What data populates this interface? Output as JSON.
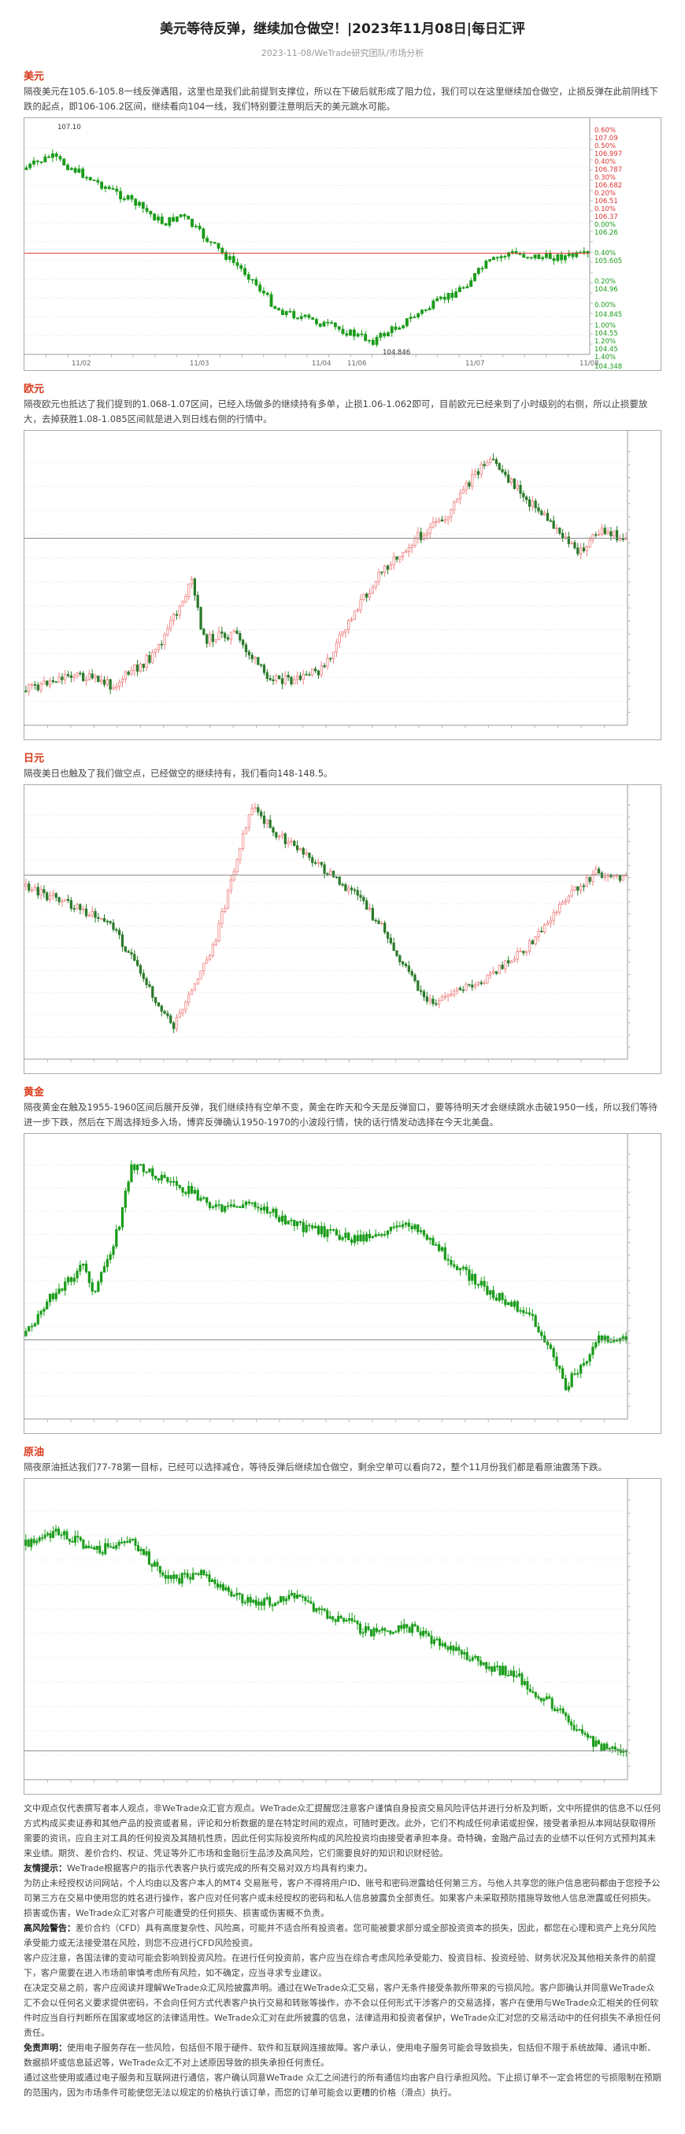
{
  "header": {
    "title": "美元等待反弹，继续加仓做空！|2023年11月08日|每日汇评",
    "subtitle": "2023-11-08/WeTrade研究团队/市场分析"
  },
  "sections": [
    {
      "key": "usd",
      "title": "美元",
      "text": "隔夜美元在105.6-105.8一线反弹遇阻，这里也是我们此前提到支撑位，所以在下破后就形成了阻力位，我们可以在这里继续加仓做空，止损反弹在此前阴线下跌的起点，即106-106.2区间，继续看向104一线，我们特别要注意明后天的美元跳水可能。",
      "chart": {
        "top_label": "107.10",
        "bottom_label": "104.846",
        "levels": [
          "0.60%",
          "107.09",
          "0.50%",
          "106.997",
          "0.40%",
          "106.787",
          "0.30%",
          "106.682",
          "0.20%",
          "106.51",
          "0.10%",
          "106.37",
          "0.00%",
          "106.26",
          "0.40%",
          "105.605",
          "0.20%",
          "104.96",
          "0.00%",
          "104.845",
          "1.00%",
          "104.55",
          "1.20%",
          "104.45",
          "1.40%",
          "104.348"
        ],
        "dates": [
          "11/02",
          "11/03",
          "11/04",
          "11/06",
          "11/07",
          "11/08"
        ]
      }
    },
    {
      "key": "eur",
      "title": "欧元",
      "text": "隔夜欧元也抵达了我们提到的1.068-1.07区间，已经入场做多的继续持有多单，止损1.06-1.062即可，目前欧元已经来到了小时级别的右侧，所以止损要放大，去掉获胜1.08-1.085区间就是进入到日线右侧的行情中。"
    },
    {
      "key": "jpy",
      "title": "日元",
      "text": "隔夜美日也触及了我们做空点，已经做空的继续持有，我们看向148-148.5。"
    },
    {
      "key": "gold",
      "title": "黄金",
      "text": "隔夜黄金在触及1955-1960区间后展开反弹，我们继续持有空单不变，黄金在昨天和今天是反弹窗口，要等待明天才会继续跳水击破1950一线，所以我们等待进一步下跌，然后在下周选择短多入场，博弈反弹确认1950-1970的小波段行情，快的话行情发动选择在今天北美盘。"
    },
    {
      "key": "oil",
      "title": "原油",
      "text": "隔夜原油抵达我们77-78第一目标，已经可以选择减仓，等待反弹后继续加仓做空，剩余空单可以看向72，整个11月份我们都是看原油震荡下跌。"
    }
  ],
  "disclaimer": [
    {
      "bold": "",
      "text": "文中观点仅代表撰写者本人观点，非WeTrade众汇官方观点。WeTrade众汇提醒您注意客户谨慎自身投资交易风险评估并进行分析及判断，文中所提供的信息不以任何方式构成买卖证券和其他产品的投资或者易，评论和分析数据的是在特定时间的观点，可随时更改。此外，它们不构成任何承诺或担保，接受者承担从本网站获取得所需要的资讯，应自主对工具的任何投资及其随机性质，因此任何实际投资所构成的风险投资均由接受者承担本身。奇特确，金融产品过去的业绩不以任何方式预判其未来业绩。期货、差价合约、权证、凭证等外汇市场和金融衍生品涉及高风险，它们需要良好的知识和识财经验。"
    },
    {
      "bold": "友情提示：",
      "text": "WeTrade根据客户的指示代表客户执行或完成的所有交易对双方均具有约束力。"
    },
    {
      "bold": "",
      "text": "为防止未经授权访问网站，个人均由以及客户本人的MT4 交易账号，客户不得将用户ID、账号和密码泄露给任何第三方。与他人共享您的账户信息密码都由于您授予公司第三方在交易中使用您的姓名进行操作，客户应对任何客户或未经授权的密码和私人信息披露负全部责任。如果客户未采取预防措施导致他人信息泄露或任何损失。损害或伤害，WeTrade众汇对客户可能遭受的任何损失、损害或伤害概不负责。"
    },
    {
      "bold": "高风险警告：",
      "text": "差价合约（CFD）具有高度复杂性、风险高，可能并不适合所有投资者。您可能被要求部分或全部投资资本的损失，因此，都您在心理和资产上充分风险承受能力或无法接受潜在风险，则您不应进行CFD风险投资。"
    },
    {
      "bold": "",
      "text": "客户应注意，各国法律的变动可能会影响到投资风险。在进行任何投资前，客户应当在综合考虑风险承受能力、投资目标、投资经验、财务状况及其他相关条件的前提下，客户需要在进入市场前审慎考虑所有风险，如不确定，应当寻求专业建议。"
    },
    {
      "bold": "",
      "text": "在决定交易之前，客户应阅读并理解WeTrade众汇风险披露声明。通过在WeTrade众汇交易，客户无条件接受条款所带来的亏损风险。客户即确认并同意WeTrade众汇不会以任何名义要求提供密码，不会向任何方式代表客户执行交易和转账等操作，亦不会以任何形式干涉客户的交易选择，客户在使用与WeTrade众汇相关的任何软件时应当自行判断所在国家或地区的法律适用性。WeTrade众汇对在此所披露的信息，法律适用和投资者保护，WeTrade众汇对您的交易活动中的任何损失不承担任何责任。"
    },
    {
      "bold": "免责声明：",
      "text": "使用电子服务存在一些风险，包括但不限于硬件、软件和互联网连接故障。客户承认，使用电子服务可能会导致损失，包括但不限于系统故障、通讯中断、数据损坏或信息延迟等，WeTrade众汇不对上述原因导致的损失承担任何责任。"
    },
    {
      "bold": "",
      "text": "通过这些使用或通过电子服务和互联网进行通信，客户确认同意WeTrade 众汇之间进行的所有通信均由客户自行承担风险。下止损订单不一定会将您的亏损限制在预期的范围内，因为市场条件可能使您无法以规定的价格执行该订单，而您的订单可能会以更糟的价格（滑点）执行。"
    }
  ]
}
